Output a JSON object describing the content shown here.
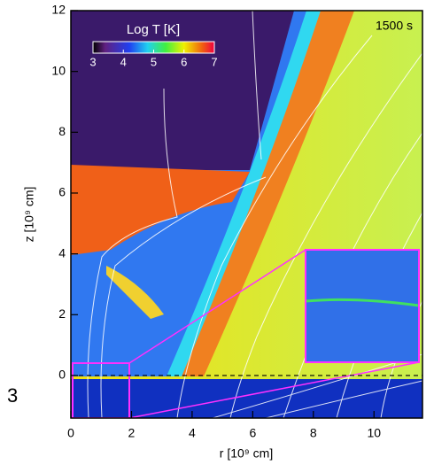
{
  "chart_data": {
    "type": "image",
    "panel_label": "3",
    "annotation": "1500 s",
    "x_label": "r [10⁹ cm]",
    "y_label": "z [10⁹ cm]",
    "xlim": [
      0,
      11.6
    ],
    "xticks": [
      0,
      2,
      4,
      6,
      8,
      10
    ],
    "ylim": [
      -1.4,
      12
    ],
    "yticks": [
      0,
      2,
      4,
      6,
      8,
      10,
      12
    ],
    "reference_line": 0,
    "colorbar": {
      "title": "Log T [K]",
      "lim": [
        3,
        7
      ],
      "ticks": [
        3,
        4,
        5,
        6,
        7
      ]
    }
  }
}
